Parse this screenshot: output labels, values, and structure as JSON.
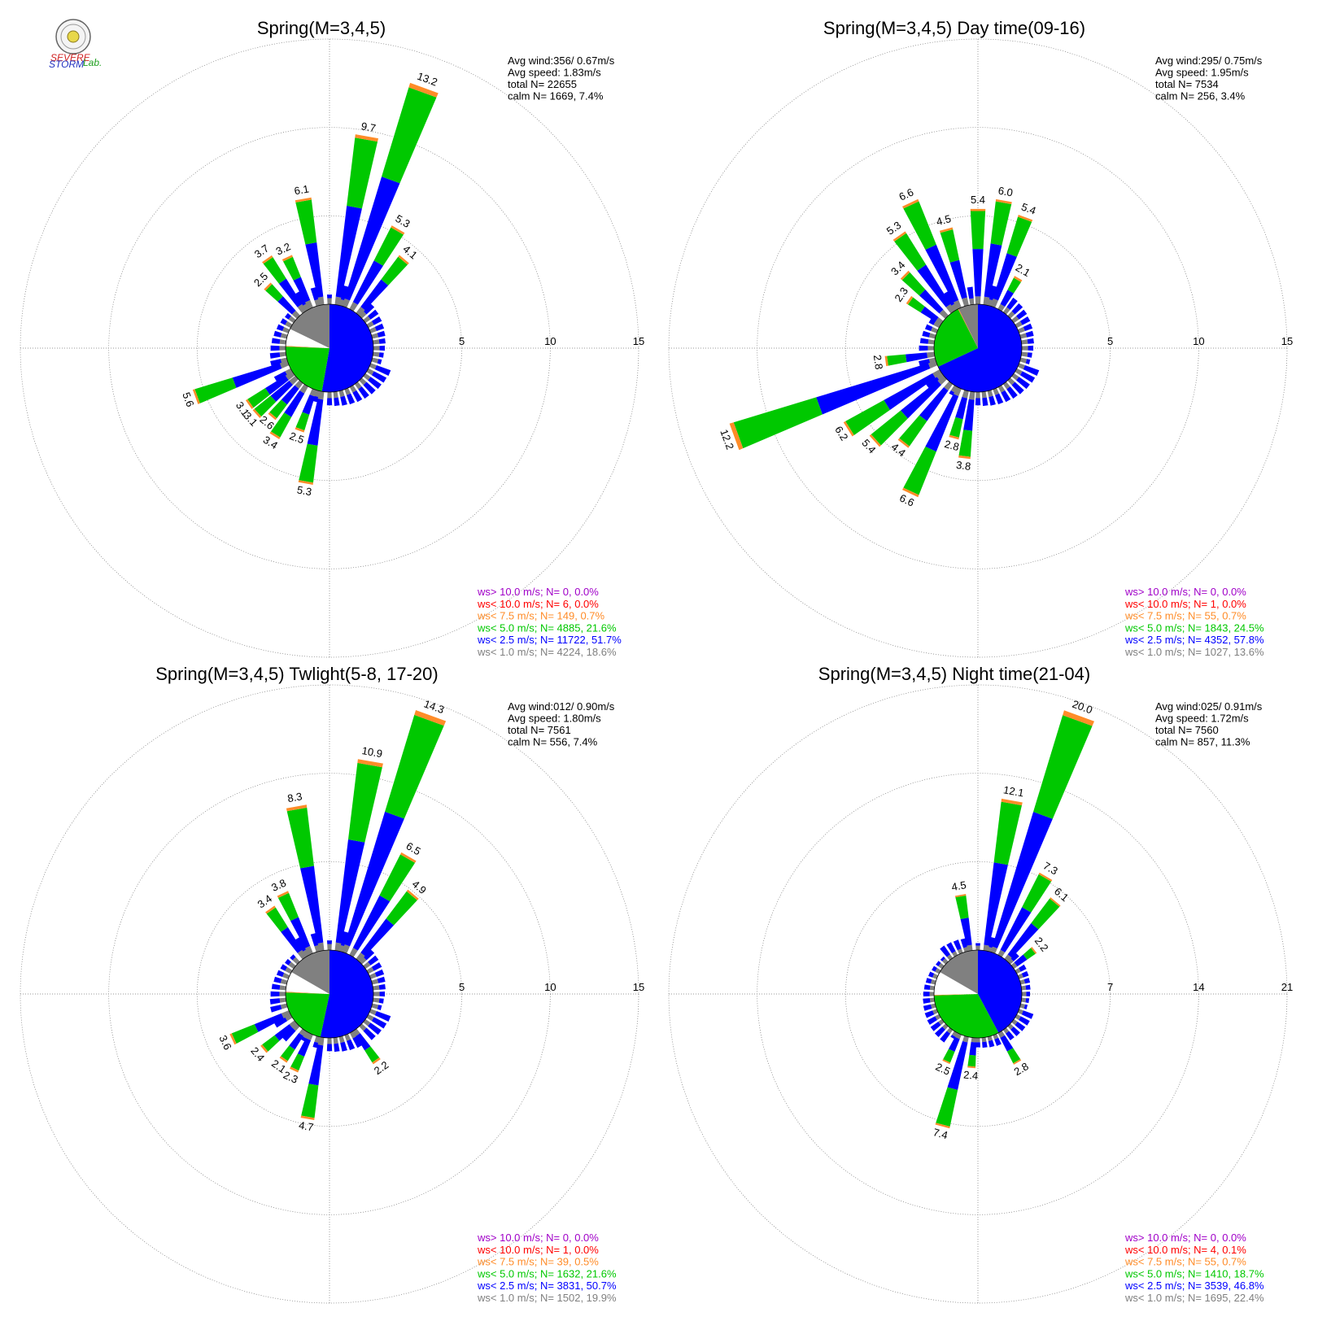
{
  "logo": {
    "text_severe": "SEVERE",
    "text_storm": "STORM",
    "text_lab": "Lab."
  },
  "colors": {
    "calm": "#808080",
    "ws1": "#808080",
    "ws2": "#0000ff",
    "ws3": "#00c800",
    "ws4": "#ff8c28",
    "ws5": "#ff0000",
    "ws6": "#a000c8"
  },
  "chart_data": [
    {
      "type": "wind-rose",
      "title": "Spring(M=3,4,5)",
      "ring_max": 15,
      "ring_ticks": [
        "5",
        "10",
        "15"
      ],
      "stats": {
        "avg_wind": "Avg wind:356/ 0.67m/s",
        "avg_speed": "Avg speed: 1.83m/s",
        "total": "total N=       22655",
        "calm": "calm N=   1669,   7.4%"
      },
      "calm_pie": [
        {
          "cls": "blue",
          "from": 0,
          "to": 190
        },
        {
          "cls": "green",
          "from": 190,
          "to": 272
        },
        {
          "cls": "orange",
          "from": 272,
          "to": 273
        },
        {
          "cls": "white",
          "from": 273,
          "to": 296
        },
        {
          "cls": "gray",
          "from": 296,
          "to": 360
        }
      ],
      "bars": [
        {
          "dir": 350,
          "total": 6.1,
          "label": "6.1"
        },
        {
          "dir": 10,
          "total": 9.7,
          "label": "9.7"
        },
        {
          "dir": 20,
          "total": 13.2,
          "label": "13.2"
        },
        {
          "dir": 30,
          "total": 5.3,
          "label": "5.3"
        },
        {
          "dir": 40,
          "total": 4.1,
          "label": "4.1"
        },
        {
          "dir": 335,
          "total": 3.2,
          "label": "3.2"
        },
        {
          "dir": 325,
          "total": 3.7,
          "label": "3.7"
        },
        {
          "dir": 315,
          "total": 2.5,
          "label": "2.5"
        },
        {
          "dir": 250,
          "total": 5.6,
          "label": "5.6"
        },
        {
          "dir": 235,
          "total": 3.1,
          "label": "3.1"
        },
        {
          "dir": 228,
          "total": 3.1,
          "label": "3.1"
        },
        {
          "dir": 220,
          "total": 2.6,
          "label": "2.6"
        },
        {
          "dir": 212,
          "total": 3.4,
          "label": "3.4"
        },
        {
          "dir": 200,
          "total": 2.5,
          "label": "2.5"
        },
        {
          "dir": 190,
          "total": 5.3,
          "label": "5.3"
        }
      ],
      "legend": [
        {
          "text": "ws> 10.0 m/s; N=     0,  0.0%",
          "color": "#a000c8"
        },
        {
          "text": "ws< 10.0 m/s; N=     6,  0.0%",
          "color": "#ff0000"
        },
        {
          "text": "ws<  7.5 m/s; N=   149,  0.7%",
          "color": "#ff8c28"
        },
        {
          "text": "ws<  5.0 m/s; N=  4885, 21.6%",
          "color": "#00c800"
        },
        {
          "text": "ws<  2.5 m/s; N= 11722, 51.7%",
          "color": "#0000ff"
        },
        {
          "text": "ws<  1.0 m/s; N=  4224, 18.6%",
          "color": "#808080"
        }
      ]
    },
    {
      "type": "wind-rose",
      "title": "Spring(M=3,4,5) Day time(09-16)",
      "ring_max": 15,
      "ring_ticks": [
        "5",
        "10",
        "15"
      ],
      "stats": {
        "avg_wind": "Avg wind:295/ 0.75m/s",
        "avg_speed": "Avg speed: 1.95m/s",
        "total": "total N=        7534",
        "calm": "calm N=    256,   3.4%"
      },
      "calm_pie": [
        {
          "cls": "blue",
          "from": 0,
          "to": 245
        },
        {
          "cls": "green",
          "from": 245,
          "to": 333
        },
        {
          "cls": "orange",
          "from": 333,
          "to": 334
        },
        {
          "cls": "gray",
          "from": 334,
          "to": 360
        }
      ],
      "bars": [
        {
          "dir": 335,
          "total": 6.6,
          "label": "6.6"
        },
        {
          "dir": 345,
          "total": 4.5,
          "label": "4.5"
        },
        {
          "dir": 0,
          "total": 5.4,
          "label": "5.4"
        },
        {
          "dir": 10,
          "total": 6.0,
          "label": "6.0"
        },
        {
          "dir": 20,
          "total": 5.4,
          "label": "5.4"
        },
        {
          "dir": 30,
          "total": 2.1,
          "label": "2.1"
        },
        {
          "dir": 325,
          "total": 5.3,
          "label": "5.3"
        },
        {
          "dir": 315,
          "total": 3.4,
          "label": "3.4"
        },
        {
          "dir": 305,
          "total": 2.3,
          "label": "2.3"
        },
        {
          "dir": 262,
          "total": 2.8,
          "label": "2.8"
        },
        {
          "dir": 250,
          "total": 12.2,
          "label": "12.2"
        },
        {
          "dir": 238,
          "total": 6.2,
          "label": "6.2"
        },
        {
          "dir": 228,
          "total": 5.4,
          "label": "5.4"
        },
        {
          "dir": 218,
          "total": 4.4,
          "label": "4.4"
        },
        {
          "dir": 205,
          "total": 6.6,
          "label": "6.6"
        },
        {
          "dir": 195,
          "total": 2.8,
          "label": "2.8"
        },
        {
          "dir": 187,
          "total": 3.8,
          "label": "3.8"
        }
      ],
      "legend": [
        {
          "text": "ws> 10.0 m/s; N=     0,  0.0%",
          "color": "#a000c8"
        },
        {
          "text": "ws< 10.0 m/s; N=     1,  0.0%",
          "color": "#ff0000"
        },
        {
          "text": "ws<  7.5 m/s; N=    55,  0.7%",
          "color": "#ff8c28"
        },
        {
          "text": "ws<  5.0 m/s; N=  1843, 24.5%",
          "color": "#00c800"
        },
        {
          "text": "ws<  2.5 m/s; N=  4352, 57.8%",
          "color": "#0000ff"
        },
        {
          "text": "ws<  1.0 m/s; N=  1027, 13.6%",
          "color": "#808080"
        }
      ]
    },
    {
      "type": "wind-rose",
      "title": "Spring(M=3,4,5) Twlight(5-8, 17-20)",
      "ring_max": 15,
      "ring_ticks": [
        "5",
        "10",
        "15"
      ],
      "stats": {
        "avg_wind": "Avg wind:012/ 0.90m/s",
        "avg_speed": "Avg speed: 1.80m/s",
        "total": "total N=        7561",
        "calm": "calm N=    556,   7.4%"
      },
      "calm_pie": [
        {
          "cls": "blue",
          "from": 0,
          "to": 192
        },
        {
          "cls": "green",
          "from": 192,
          "to": 272
        },
        {
          "cls": "orange",
          "from": 272,
          "to": 273
        },
        {
          "cls": "white",
          "from": 273,
          "to": 300
        },
        {
          "cls": "gray",
          "from": 300,
          "to": 360
        }
      ],
      "bars": [
        {
          "dir": 350,
          "total": 8.3,
          "label": "8.3"
        },
        {
          "dir": 10,
          "total": 10.9,
          "label": "10.9"
        },
        {
          "dir": 20,
          "total": 14.3,
          "label": "14.3"
        },
        {
          "dir": 30,
          "total": 6.5,
          "label": "6.5"
        },
        {
          "dir": 40,
          "total": 4.9,
          "label": "4.9"
        },
        {
          "dir": 335,
          "total": 3.8,
          "label": "3.8"
        },
        {
          "dir": 325,
          "total": 3.4,
          "label": "3.4"
        },
        {
          "dir": 245,
          "total": 3.6,
          "label": "3.6"
        },
        {
          "dir": 230,
          "total": 2.4,
          "label": "2.4"
        },
        {
          "dir": 215,
          "total": 2.1,
          "label": "2.1"
        },
        {
          "dir": 205,
          "total": 2.3,
          "label": "2.3"
        },
        {
          "dir": 190,
          "total": 4.7,
          "label": "4.7"
        },
        {
          "dir": 145,
          "total": 2.2,
          "label": "2.2"
        }
      ],
      "legend": [
        {
          "text": "ws> 10.0 m/s; N=     0,  0.0%",
          "color": "#a000c8"
        },
        {
          "text": "ws< 10.0 m/s; N=     1,  0.0%",
          "color": "#ff0000"
        },
        {
          "text": "ws<  7.5 m/s; N=    39,  0.5%",
          "color": "#ff8c28"
        },
        {
          "text": "ws<  5.0 m/s; N=  1632, 21.6%",
          "color": "#00c800"
        },
        {
          "text": "ws<  2.5 m/s; N=  3831, 50.7%",
          "color": "#0000ff"
        },
        {
          "text": "ws<  1.0 m/s; N=  1502, 19.9%",
          "color": "#808080"
        }
      ]
    },
    {
      "type": "wind-rose",
      "title": "Spring(M=3,4,5) Night time(21-04)",
      "ring_max": 21,
      "ring_ticks": [
        "7",
        "14",
        "21"
      ],
      "stats": {
        "avg_wind": "Avg wind:025/ 0.91m/s",
        "avg_speed": "Avg speed: 1.72m/s",
        "total": "total N=        7560",
        "calm": "calm N=    857,  11.3%"
      },
      "calm_pie": [
        {
          "cls": "blue",
          "from": 0,
          "to": 152
        },
        {
          "cls": "green",
          "from": 152,
          "to": 268
        },
        {
          "cls": "orange",
          "from": 268,
          "to": 269
        },
        {
          "cls": "white",
          "from": 269,
          "to": 300
        },
        {
          "cls": "gray",
          "from": 300,
          "to": 360
        }
      ],
      "bars": [
        {
          "dir": 350,
          "total": 4.5,
          "label": "4.5"
        },
        {
          "dir": 10,
          "total": 12.1,
          "label": "12.1"
        },
        {
          "dir": 20,
          "total": 20.0,
          "label": "20.0"
        },
        {
          "dir": 30,
          "total": 7.3,
          "label": "7.3"
        },
        {
          "dir": 40,
          "total": 6.1,
          "label": "6.1"
        },
        {
          "dir": 52,
          "total": 2.2,
          "label": "2.2"
        },
        {
          "dir": 195,
          "total": 7.4,
          "label": "7.4"
        },
        {
          "dir": 205,
          "total": 2.5,
          "label": "2.5"
        },
        {
          "dir": 185,
          "total": 2.4,
          "label": "2.4"
        },
        {
          "dir": 150,
          "total": 2.8,
          "label": "2.8"
        }
      ],
      "legend": [
        {
          "text": "ws> 10.0 m/s; N=     0,  0.0%",
          "color": "#a000c8"
        },
        {
          "text": "ws< 10.0 m/s; N=     4,  0.1%",
          "color": "#ff0000"
        },
        {
          "text": "ws<  7.5 m/s; N=    55,  0.7%",
          "color": "#ff8c28"
        },
        {
          "text": "ws<  5.0 m/s; N=  1410, 18.7%",
          "color": "#00c800"
        },
        {
          "text": "ws<  2.5 m/s; N=  3539, 46.8%",
          "color": "#0000ff"
        },
        {
          "text": "ws<  1.0 m/s; N=  1695, 22.4%",
          "color": "#808080"
        }
      ]
    }
  ]
}
